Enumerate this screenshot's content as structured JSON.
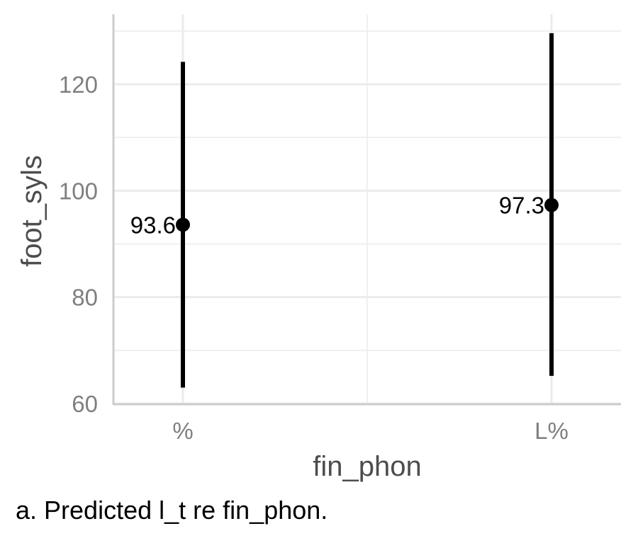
{
  "chart_data": {
    "type": "point-range",
    "xlabel": "fin_phon",
    "ylabel": "foot_syls",
    "categories": [
      "%",
      "L%"
    ],
    "estimates": [
      93.6,
      97.3
    ],
    "lower": [
      63.0,
      65.2
    ],
    "upper": [
      124.2,
      129.6
    ],
    "point_labels": [
      "93.6",
      "97.3"
    ],
    "ylim": [
      60,
      130
    ],
    "yticks": [
      60,
      80,
      100,
      120
    ],
    "ytick_labels": [
      "60",
      "80",
      "100",
      "120"
    ],
    "grid": true,
    "colors": {
      "marks": "#000000",
      "grid": "#ebebeb",
      "axis_line": "#cccccc",
      "tick_text": "#7f7f7f",
      "axis_title": "#4d4d4d"
    }
  },
  "caption": "a. Predicted l_t re fin_phon."
}
